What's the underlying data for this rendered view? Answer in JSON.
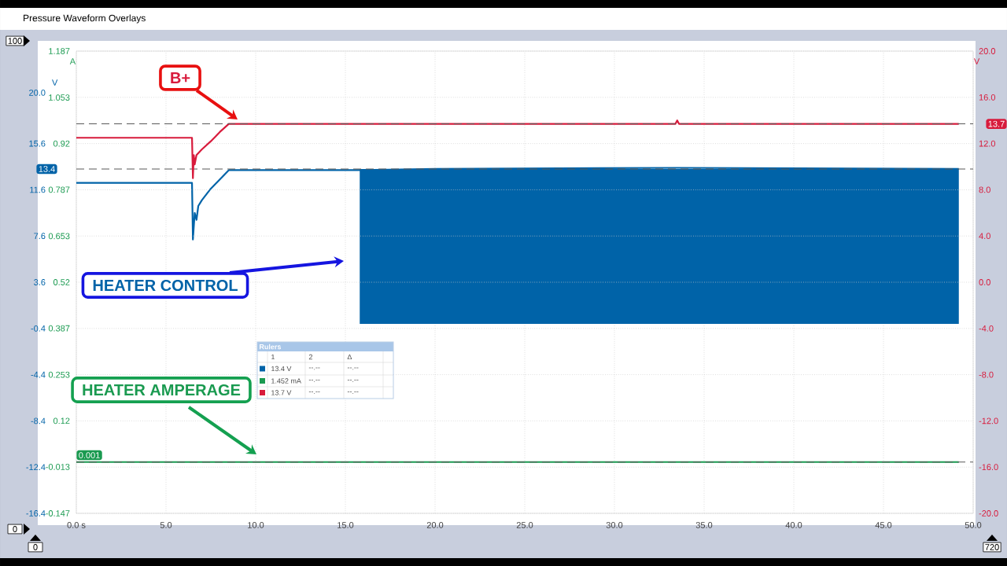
{
  "chart_data": {
    "type": "line",
    "title": "Pressure Waveform Overlays",
    "ylabel": "V",
    "y2label": "V",
    "y3label": "A",
    "xlim": [
      0,
      50
    ],
    "ylim": [
      -16.4,
      23.6
    ],
    "y2lim": [
      -20,
      20
    ],
    "y3lim": [
      -0.147,
      1.187
    ],
    "xticks": [
      {
        "value": 0,
        "label": "0.0 s"
      },
      {
        "value": 5,
        "label": "5.0"
      },
      {
        "value": 10,
        "label": "10.0"
      },
      {
        "value": 15,
        "label": "15.0"
      },
      {
        "value": 20,
        "label": "20.0"
      },
      {
        "value": 25,
        "label": "25.0"
      },
      {
        "value": 30,
        "label": "30.0"
      },
      {
        "value": 35,
        "label": "35.0"
      },
      {
        "value": 40,
        "label": "40.0"
      },
      {
        "value": 45,
        "label": "45.0"
      },
      {
        "value": 50,
        "label": "50.0"
      }
    ],
    "yticks": [
      {
        "value": 20,
        "label": "20.0"
      },
      15.6,
      11.6,
      7.6,
      3.6,
      -0.4,
      -4.4,
      -8.4,
      -12.4,
      -16.4
    ],
    "y2ticks": [
      {
        "value": 20,
        "label": "20.0"
      },
      {
        "value": 16,
        "label": "16.0"
      },
      {
        "value": 12,
        "label": "12.0"
      },
      {
        "value": 8,
        "label": "8.0"
      },
      {
        "value": 4,
        "label": "4.0"
      },
      {
        "value": 0,
        "label": "0.0"
      },
      {
        "value": -4,
        "label": "-4.0"
      },
      {
        "value": -8,
        "label": "-8.0"
      },
      {
        "value": -12,
        "label": "-12.0"
      },
      {
        "value": -16,
        "label": "-16.0"
      },
      {
        "value": -20,
        "label": "-20.0"
      }
    ],
    "y3ticks": [
      1.187,
      1.053,
      0.92,
      0.787,
      0.653,
      0.52,
      0.387,
      0.253,
      0.12,
      -0.013,
      -0.147
    ],
    "grid": true,
    "marker": "none",
    "series": [
      {
        "name": "HEATER CONTROL",
        "color": "#0063a8",
        "x": [
          0,
          6.45,
          6.5,
          6.6,
          6.7,
          6.8,
          7.0,
          7.5,
          8.0,
          8.5,
          15.8,
          20,
          33.5,
          49.2
        ],
        "values": [
          12.2,
          12.2,
          7.3,
          9.6,
          9.0,
          10.2,
          10.7,
          11.7,
          12.5,
          13.3,
          13.3,
          13.4,
          13.5,
          13.4
        ],
        "lower": [
          null,
          null,
          null,
          null,
          null,
          null,
          null,
          null,
          null,
          null,
          0.0,
          0.0,
          0.0,
          0.0
        ],
        "upper": [
          null,
          null,
          null,
          null,
          null,
          null,
          null,
          null,
          null,
          null,
          13.4,
          13.4,
          13.4,
          13.4
        ]
      },
      {
        "name": "HEATER AMPERAGE",
        "color": "#1a9a50",
        "axis": "y3",
        "x": [
          0,
          49.2
        ],
        "values": [
          0.001,
          0.001
        ]
      },
      {
        "name": "B+",
        "color": "#d81b3c",
        "axis": "y2",
        "x": [
          0,
          6.45,
          6.5,
          6.55,
          6.6,
          6.7,
          7.0,
          7.5,
          8.0,
          8.5,
          15,
          25,
          33.4,
          33.5,
          33.6,
          49.2
        ],
        "values": [
          12.5,
          12.5,
          9.0,
          11.0,
          10.2,
          11.0,
          11.5,
          12.2,
          13.0,
          13.7,
          13.7,
          13.7,
          13.7,
          14.0,
          13.7,
          13.7
        ]
      }
    ],
    "ref_lines": [
      {
        "axis": "y",
        "value": 13.4,
        "label": "13.4",
        "color": "#595959",
        "line_style": "dashed"
      },
      {
        "axis": "y2",
        "value": 13.7,
        "label": "13.7",
        "color": "#595959",
        "line_style": "dashed"
      },
      {
        "axis": "y3",
        "value": 0.001,
        "label": "0.001",
        "color": "#595959",
        "line_style": "dashed"
      }
    ],
    "annotations": [
      "Rulers",
      "1",
      "2",
      "Δ",
      "13.4 V",
      "--.--",
      "--.--",
      "1.452 mA",
      "--.--",
      "--.--",
      "13.7 V",
      "--.--",
      "--.--",
      "100",
      "0",
      "0",
      "720"
    ]
  }
}
